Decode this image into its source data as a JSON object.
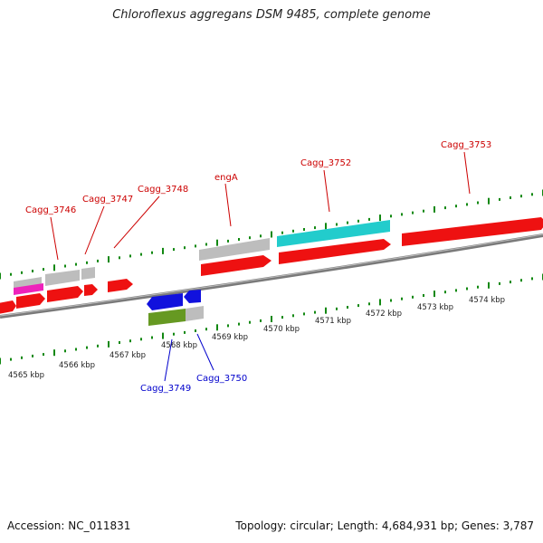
{
  "title": "Chloroflexus aggregans DSM 9485, complete genome",
  "footer": {
    "accession": "Accession: NC_011831",
    "summary": "Topology: circular; Length: 4,684,931 bp; Genes: 3,787"
  },
  "colors": {
    "forward_gene": "#ee1111",
    "reverse_gene": "#ee1111",
    "pseudo_gene": "#c0c0c0",
    "rna_gene": "#ff33cc",
    "cyan_feature": "#22cccc",
    "blue_feature": "#1111dd",
    "olive_feature": "#669922",
    "tick": "#118811",
    "backbone": "#888888",
    "label_red": "#cc0000",
    "label_blue": "#0000cc"
  },
  "gene_labels_top": [
    "Cagg_3746",
    "Cagg_3747",
    "Cagg_3748",
    "engA",
    "Cagg_3752",
    "Cagg_3753"
  ],
  "gene_labels_bottom": [
    "Cagg_3749",
    "Cagg_3750"
  ],
  "tick_labels": [
    "4565 kbp",
    "4566 kbp",
    "4567 kbp",
    "4568 kbp",
    "4569 kbp",
    "4570 kbp",
    "4571 kbp",
    "4572 kbp",
    "4573 kbp",
    "4574 kbp"
  ]
}
